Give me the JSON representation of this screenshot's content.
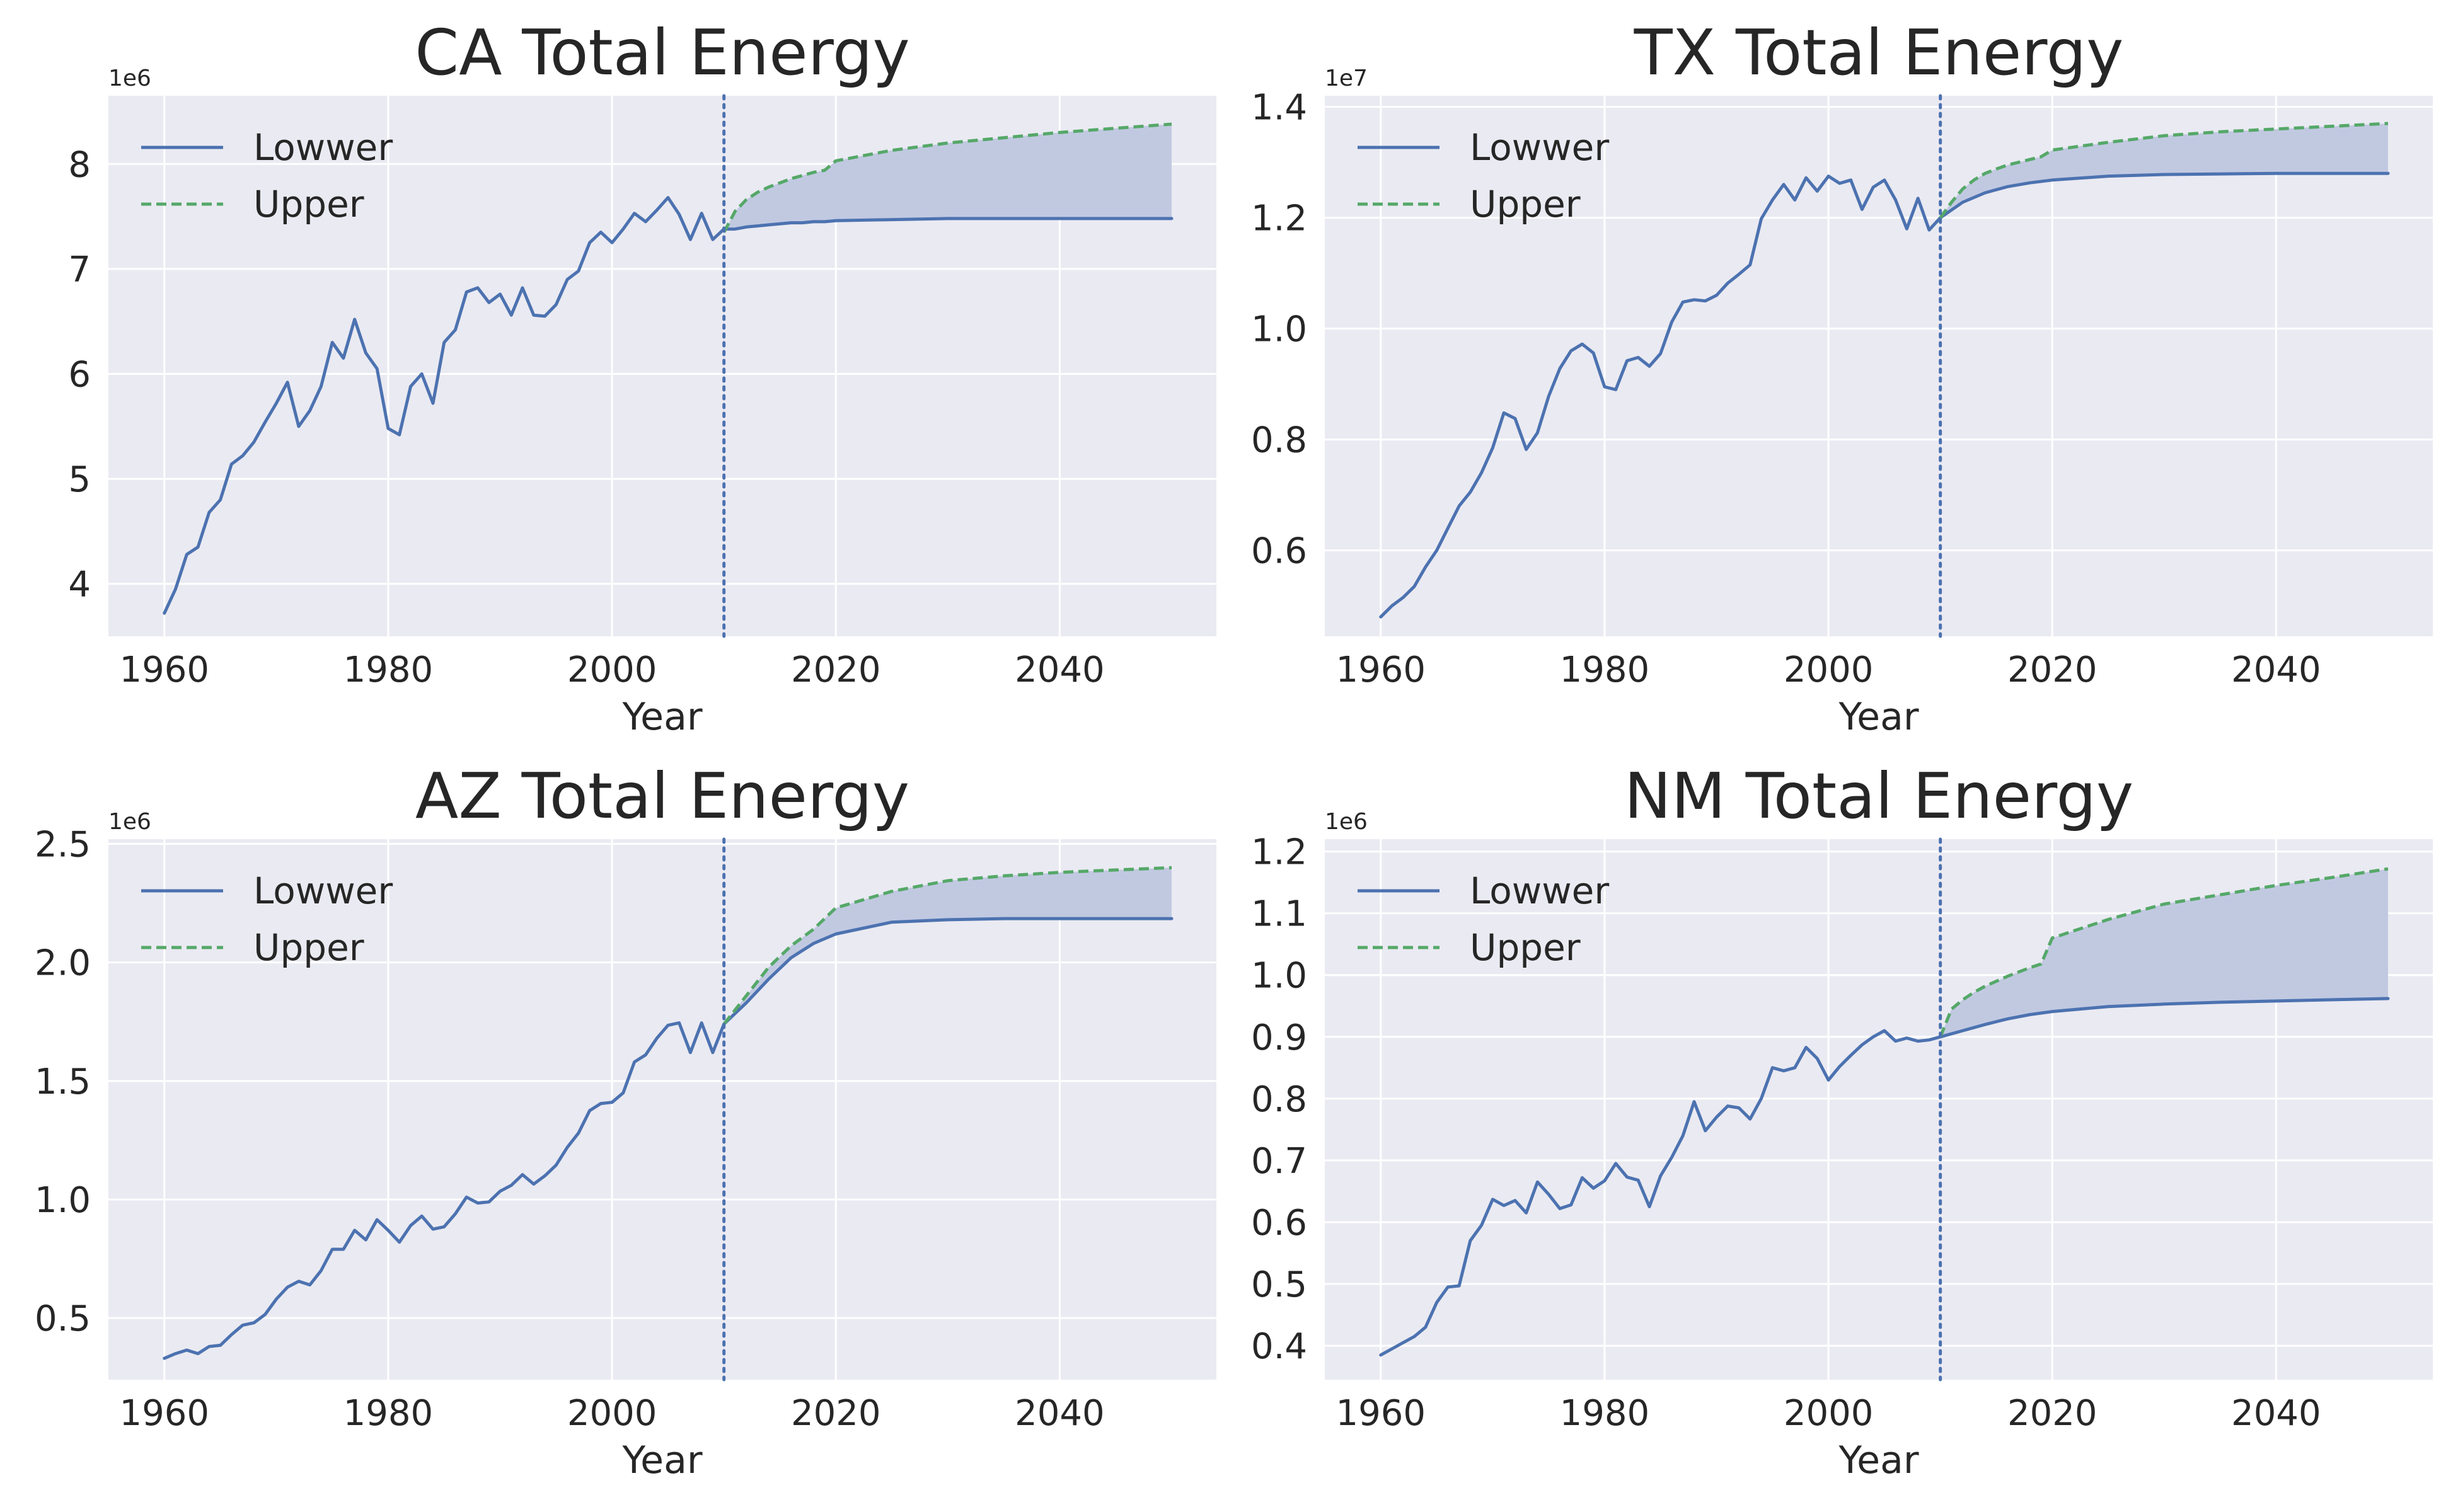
{
  "chart_data": [
    {
      "type": "line",
      "title": "CA Total Energy",
      "xlabel": "Year",
      "ylabel": "",
      "offset_label": "1e6",
      "scale": 1000000,
      "xlim": [
        1955,
        2054
      ],
      "ylim": [
        3.5,
        8.65
      ],
      "xticks": [
        1960,
        1980,
        2000,
        2020,
        2040
      ],
      "yticks": [
        4,
        5,
        6,
        7,
        8
      ],
      "ytick_labels": [
        "4",
        "5",
        "6",
        "7",
        "8"
      ],
      "vline_x": 2010,
      "fill_between": true,
      "grid": true,
      "legend_position": "upper-left",
      "series": [
        {
          "name": "Lowwer",
          "style": "solid",
          "color": "#4c72b0",
          "x": [
            1960,
            1961,
            1962,
            1963,
            1964,
            1965,
            1966,
            1967,
            1968,
            1969,
            1970,
            1971,
            1972,
            1973,
            1974,
            1975,
            1976,
            1977,
            1978,
            1979,
            1980,
            1981,
            1982,
            1983,
            1984,
            1985,
            1986,
            1987,
            1988,
            1989,
            1990,
            1991,
            1992,
            1993,
            1994,
            1995,
            1996,
            1997,
            1998,
            1999,
            2000,
            2001,
            2002,
            2003,
            2004,
            2005,
            2006,
            2007,
            2008,
            2009,
            2010,
            2011,
            2012,
            2013,
            2014,
            2015,
            2016,
            2017,
            2018,
            2019,
            2020,
            2025,
            2030,
            2035,
            2040,
            2045,
            2050
          ],
          "y": [
            3.72,
            3.95,
            4.28,
            4.35,
            4.68,
            4.8,
            5.14,
            5.22,
            5.35,
            5.54,
            5.72,
            5.92,
            5.5,
            5.65,
            5.88,
            6.3,
            6.15,
            6.52,
            6.2,
            6.05,
            5.48,
            5.42,
            5.88,
            6.0,
            5.72,
            6.3,
            6.42,
            6.78,
            6.82,
            6.68,
            6.76,
            6.56,
            6.82,
            6.56,
            6.55,
            6.66,
            6.9,
            6.98,
            7.25,
            7.35,
            7.25,
            7.38,
            7.53,
            7.45,
            7.56,
            7.68,
            7.52,
            7.28,
            7.53,
            7.28,
            7.38,
            7.38,
            7.4,
            7.41,
            7.42,
            7.43,
            7.44,
            7.44,
            7.45,
            7.45,
            7.46,
            7.47,
            7.48,
            7.48,
            7.48,
            7.48,
            7.48
          ]
        },
        {
          "name": "Upper",
          "style": "dashed",
          "color": "#55a868",
          "x": [
            2010,
            2011,
            2012,
            2013,
            2014,
            2015,
            2016,
            2017,
            2018,
            2019,
            2020,
            2025,
            2030,
            2035,
            2040,
            2045,
            2050
          ],
          "y": [
            7.35,
            7.55,
            7.66,
            7.73,
            7.78,
            7.82,
            7.86,
            7.89,
            7.92,
            7.94,
            8.03,
            8.13,
            8.2,
            8.25,
            8.3,
            8.34,
            8.38
          ]
        }
      ]
    },
    {
      "type": "line",
      "title": "TX Total Energy",
      "xlabel": "Year",
      "ylabel": "",
      "offset_label": "1e7",
      "scale": 10000000,
      "xlim": [
        1955,
        2054
      ],
      "ylim": [
        0.445,
        1.42
      ],
      "xticks": [
        1960,
        1980,
        2000,
        2020,
        2040
      ],
      "yticks": [
        0.6,
        0.8,
        1.0,
        1.2,
        1.4
      ],
      "ytick_labels": [
        "0.6",
        "0.8",
        "1.0",
        "1.2",
        "1.4"
      ],
      "vline_x": 2010,
      "fill_between": true,
      "grid": true,
      "legend_position": "upper-left",
      "series": [
        {
          "name": "Lowwer",
          "style": "solid",
          "color": "#4c72b0",
          "x": [
            1960,
            1961,
            1962,
            1963,
            1964,
            1965,
            1966,
            1967,
            1968,
            1969,
            1970,
            1971,
            1972,
            1973,
            1974,
            1975,
            1976,
            1977,
            1978,
            1979,
            1980,
            1981,
            1982,
            1983,
            1984,
            1985,
            1986,
            1987,
            1988,
            1989,
            1990,
            1991,
            1992,
            1993,
            1994,
            1995,
            1996,
            1997,
            1998,
            1999,
            2000,
            2001,
            2002,
            2003,
            2004,
            2005,
            2006,
            2007,
            2008,
            2009,
            2010,
            2012,
            2014,
            2016,
            2018,
            2020,
            2025,
            2030,
            2035,
            2040,
            2045,
            2050
          ],
          "y": [
            0.48,
            0.5,
            0.515,
            0.535,
            0.57,
            0.6,
            0.64,
            0.68,
            0.705,
            0.74,
            0.785,
            0.848,
            0.838,
            0.782,
            0.812,
            0.878,
            0.928,
            0.96,
            0.972,
            0.956,
            0.895,
            0.89,
            0.942,
            0.948,
            0.932,
            0.955,
            1.012,
            1.048,
            1.052,
            1.05,
            1.06,
            1.082,
            1.098,
            1.115,
            1.198,
            1.232,
            1.26,
            1.232,
            1.272,
            1.248,
            1.275,
            1.262,
            1.268,
            1.215,
            1.255,
            1.268,
            1.232,
            1.18,
            1.235,
            1.178,
            1.2,
            1.228,
            1.245,
            1.256,
            1.263,
            1.268,
            1.275,
            1.278,
            1.279,
            1.28,
            1.28,
            1.28
          ]
        },
        {
          "name": "Upper",
          "style": "dashed",
          "color": "#55a868",
          "x": [
            2010,
            2011,
            2012,
            2013,
            2014,
            2015,
            2016,
            2017,
            2018,
            2019,
            2020,
            2025,
            2030,
            2035,
            2040,
            2045,
            2050
          ],
          "y": [
            1.2,
            1.228,
            1.252,
            1.268,
            1.28,
            1.288,
            1.295,
            1.3,
            1.305,
            1.31,
            1.322,
            1.336,
            1.348,
            1.355,
            1.36,
            1.365,
            1.37
          ]
        }
      ]
    },
    {
      "type": "line",
      "title": "AZ Total Energy",
      "xlabel": "Year",
      "ylabel": "",
      "offset_label": "1e6",
      "scale": 1000000,
      "xlim": [
        1955,
        2054
      ],
      "ylim": [
        0.24,
        2.52
      ],
      "xticks": [
        1960,
        1980,
        2000,
        2020,
        2040
      ],
      "yticks": [
        0.5,
        1.0,
        1.5,
        2.0,
        2.5
      ],
      "ytick_labels": [
        "0.5",
        "1.0",
        "1.5",
        "2.0",
        "2.5"
      ],
      "vline_x": 2010,
      "fill_between": true,
      "grid": true,
      "legend_position": "upper-left",
      "series": [
        {
          "name": "Lowwer",
          "style": "solid",
          "color": "#4c72b0",
          "x": [
            1960,
            1961,
            1962,
            1963,
            1964,
            1965,
            1966,
            1967,
            1968,
            1969,
            1970,
            1971,
            1972,
            1973,
            1974,
            1975,
            1976,
            1977,
            1978,
            1979,
            1980,
            1981,
            1982,
            1983,
            1984,
            1985,
            1986,
            1987,
            1988,
            1989,
            1990,
            1991,
            1992,
            1993,
            1994,
            1995,
            1996,
            1997,
            1998,
            1999,
            2000,
            2001,
            2002,
            2003,
            2004,
            2005,
            2006,
            2007,
            2008,
            2009,
            2010,
            2012,
            2014,
            2016,
            2018,
            2020,
            2025,
            2030,
            2035,
            2040,
            2045,
            2050
          ],
          "y": [
            0.33,
            0.35,
            0.365,
            0.35,
            0.38,
            0.385,
            0.43,
            0.47,
            0.48,
            0.515,
            0.58,
            0.63,
            0.655,
            0.64,
            0.7,
            0.79,
            0.79,
            0.87,
            0.83,
            0.915,
            0.87,
            0.82,
            0.89,
            0.93,
            0.875,
            0.885,
            0.94,
            1.01,
            0.985,
            0.99,
            1.035,
            1.06,
            1.105,
            1.065,
            1.1,
            1.145,
            1.22,
            1.28,
            1.375,
            1.405,
            1.41,
            1.45,
            1.58,
            1.61,
            1.68,
            1.735,
            1.745,
            1.62,
            1.745,
            1.62,
            1.74,
            1.83,
            1.93,
            2.02,
            2.08,
            2.12,
            2.17,
            2.18,
            2.185,
            2.185,
            2.185,
            2.185
          ]
        },
        {
          "name": "Upper",
          "style": "dashed",
          "color": "#55a868",
          "x": [
            2010,
            2012,
            2014,
            2016,
            2018,
            2020,
            2025,
            2030,
            2035,
            2040,
            2045,
            2050
          ],
          "y": [
            1.74,
            1.86,
            1.98,
            2.07,
            2.14,
            2.23,
            2.3,
            2.345,
            2.365,
            2.38,
            2.39,
            2.4
          ]
        }
      ]
    },
    {
      "type": "line",
      "title": "NM Total Energy",
      "xlabel": "Year",
      "ylabel": "",
      "offset_label": "1e6",
      "scale": 1000000,
      "xlim": [
        1955,
        2054
      ],
      "ylim": [
        0.345,
        1.22
      ],
      "xticks": [
        1960,
        1980,
        2000,
        2020,
        2040
      ],
      "yticks": [
        0.4,
        0.5,
        0.6,
        0.7,
        0.8,
        0.9,
        1.0,
        1.1,
        1.2
      ],
      "ytick_labels": [
        "0.4",
        "0.5",
        "0.6",
        "0.7",
        "0.8",
        "0.9",
        "1.0",
        "1.1",
        "1.2"
      ],
      "vline_x": 2010,
      "fill_between": true,
      "grid": true,
      "legend_position": "upper-left",
      "series": [
        {
          "name": "Lowwer",
          "style": "solid",
          "color": "#4c72b0",
          "x": [
            1960,
            1961,
            1962,
            1963,
            1964,
            1965,
            1966,
            1967,
            1968,
            1969,
            1970,
            1971,
            1972,
            1973,
            1974,
            1975,
            1976,
            1977,
            1978,
            1979,
            1980,
            1981,
            1982,
            1983,
            1984,
            1985,
            1986,
            1987,
            1988,
            1989,
            1990,
            1991,
            1992,
            1993,
            1994,
            1995,
            1996,
            1997,
            1998,
            1999,
            2000,
            2001,
            2002,
            2003,
            2004,
            2005,
            2006,
            2007,
            2008,
            2009,
            2010,
            2012,
            2014,
            2016,
            2018,
            2020,
            2025,
            2030,
            2035,
            2040,
            2045,
            2050
          ],
          "y": [
            0.385,
            0.395,
            0.405,
            0.415,
            0.43,
            0.47,
            0.495,
            0.497,
            0.57,
            0.595,
            0.637,
            0.627,
            0.635,
            0.615,
            0.665,
            0.645,
            0.622,
            0.628,
            0.672,
            0.655,
            0.667,
            0.695,
            0.673,
            0.668,
            0.625,
            0.675,
            0.705,
            0.74,
            0.795,
            0.748,
            0.77,
            0.788,
            0.785,
            0.767,
            0.8,
            0.85,
            0.845,
            0.85,
            0.883,
            0.865,
            0.83,
            0.852,
            0.87,
            0.887,
            0.9,
            0.91,
            0.893,
            0.898,
            0.893,
            0.895,
            0.9,
            0.91,
            0.92,
            0.929,
            0.936,
            0.941,
            0.949,
            0.953,
            0.956,
            0.958,
            0.96,
            0.962
          ]
        },
        {
          "name": "Upper",
          "style": "dashed",
          "color": "#55a868",
          "x": [
            2010,
            2011,
            2012,
            2013,
            2014,
            2015,
            2016,
            2017,
            2018,
            2019,
            2020,
            2025,
            2030,
            2035,
            2040,
            2045,
            2050
          ],
          "y": [
            0.9,
            0.945,
            0.96,
            0.972,
            0.982,
            0.99,
            0.998,
            1.005,
            1.012,
            1.018,
            1.06,
            1.09,
            1.115,
            1.13,
            1.145,
            1.158,
            1.172
          ]
        }
      ]
    }
  ],
  "colors": {
    "axes_bg": "#eaeaf2",
    "grid": "#ffffff",
    "fill": "#c1c9e1",
    "vline": "#4c72b0",
    "text": "#262626"
  }
}
